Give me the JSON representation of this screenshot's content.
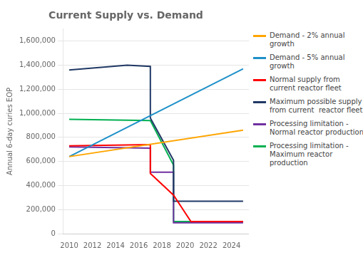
{
  "chart_data": {
    "type": "line",
    "title": "Current Supply vs. Demand",
    "y_label": "Annual 6-day curies EOP",
    "series": [
      {
        "name": "Demand - 2% annual\ngrowth",
        "color": "#FFA500",
        "x": [
          2010,
          2025
        ],
        "values": [
          640000,
          860000
        ]
      },
      {
        "name": "Demand - 5% annual\ngrowth",
        "color": "#1E90C8",
        "x": [
          2010,
          2025
        ],
        "values": [
          640000,
          1370000
        ]
      },
      {
        "name": "Normal supply from\ncurrent reactor fleet",
        "color": "#FF0000",
        "x": [
          2010,
          2017,
          2017,
          2019,
          2019,
          2020.5,
          2020.5,
          2025
        ],
        "values": [
          730000,
          740000,
          500000,
          320000,
          320000,
          100000,
          100000,
          100000
        ]
      },
      {
        "name": "Maximum possible supply\nfrom current  reactor fleet",
        "color": "#1F3864",
        "x": [
          2010,
          2015,
          2015,
          2017,
          2017,
          2019,
          2019,
          2021,
          2021,
          2025
        ],
        "values": [
          1360000,
          1400000,
          1400000,
          1390000,
          960000,
          610000,
          270000,
          270000,
          270000,
          270000
        ]
      },
      {
        "name": "Processing limitation -\nNormal reactor production",
        "color": "#7030A0",
        "x": [
          2010,
          2017,
          2017,
          2019,
          2019,
          2020.5,
          2020.5,
          2025
        ],
        "values": [
          720000,
          710000,
          510000,
          510000,
          90000,
          90000,
          90000,
          90000
        ]
      },
      {
        "name": "Processing limitation -\nMaximum reactor\nproduction",
        "color": "#00B050",
        "x": [
          2010,
          2017,
          2017,
          2019,
          2019,
          2020.5,
          2020.5,
          2025
        ],
        "values": [
          950000,
          940000,
          940000,
          570000,
          100000,
          100000,
          100000,
          100000
        ]
      }
    ],
    "xlim": [
      2009.5,
      2025.5
    ],
    "xticks": [
      2010,
      2012,
      2014,
      2016,
      2018,
      2020,
      2022,
      2024
    ],
    "ylim": [
      0,
      1700000
    ],
    "yticks": [
      0,
      {
        "value": 200000,
        "label": "200,000"
      },
      {
        "value": 400000,
        "label": "400,000"
      },
      {
        "value": 600000,
        "label": "600,000"
      },
      {
        "value": 800000,
        "label": "800,000"
      },
      {
        "value": 1000000,
        "label": "1,000,000"
      },
      {
        "value": 1200000,
        "label": "1,200,000"
      },
      {
        "value": 1400000,
        "label": "1,400,000"
      },
      {
        "value": 1600000,
        "label": "1,600,000"
      }
    ],
    "grid": "y",
    "legend": "right"
  }
}
